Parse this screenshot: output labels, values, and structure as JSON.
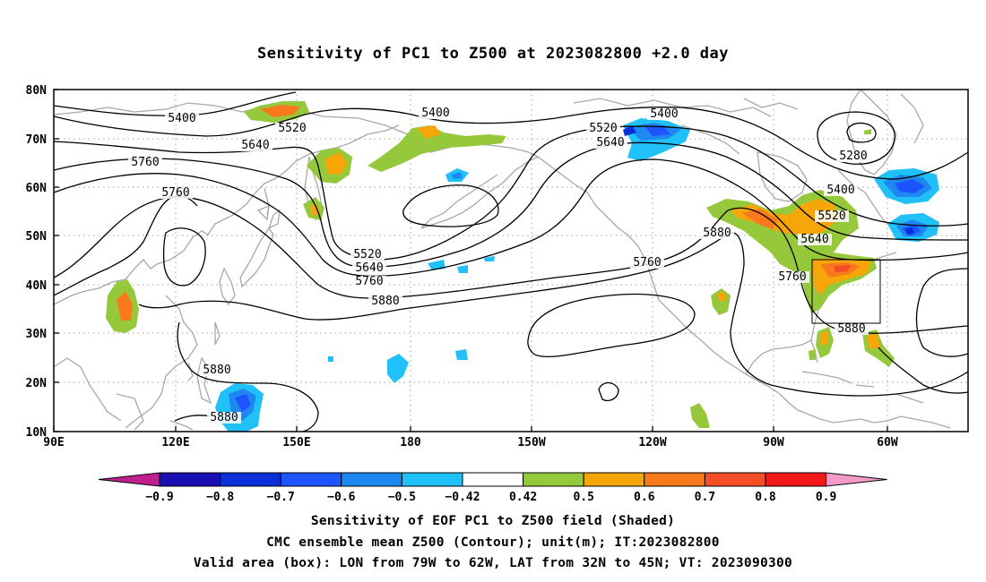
{
  "title": "Sensitivity of PC1 to Z500 at 2023082800 +2.0 day",
  "lat_ticks": [
    "80N",
    "70N",
    "60N",
    "50N",
    "40N",
    "30N",
    "20N",
    "10N"
  ],
  "lon_ticks": [
    "90E",
    "120E",
    "150E",
    "180",
    "150W",
    "120W",
    "90W",
    "60W"
  ],
  "contour_labels": [
    {
      "text": "5400"
    },
    {
      "text": "5520"
    },
    {
      "text": "5640"
    },
    {
      "text": "5760"
    },
    {
      "text": "5760"
    },
    {
      "text": "5400"
    },
    {
      "text": "5520"
    },
    {
      "text": "5400"
    },
    {
      "text": "5640"
    },
    {
      "text": "5280"
    },
    {
      "text": "5400"
    },
    {
      "text": "5520"
    },
    {
      "text": "5640"
    },
    {
      "text": "5880"
    },
    {
      "text": "5760"
    },
    {
      "text": "5520"
    },
    {
      "text": "5640"
    },
    {
      "text": "5760"
    },
    {
      "text": "5880"
    },
    {
      "text": "5760"
    },
    {
      "text": "5880"
    },
    {
      "text": "5880"
    },
    {
      "text": "5880"
    }
  ],
  "colorbar": {
    "labels": [
      "-0.9",
      "-0.8",
      "-0.7",
      "-0.6",
      "-0.5",
      "-0.42",
      "0.42",
      "0.5",
      "0.6",
      "0.7",
      "0.8",
      "0.9"
    ],
    "colors": [
      "#c0208f",
      "#1a0fb0",
      "#0a2fd8",
      "#1c55ff",
      "#1e88f0",
      "#20c0f8",
      "#ffffff",
      "#96c83c",
      "#f7a60a",
      "#f87a1c",
      "#f44e26",
      "#f01818",
      "#f49ac8"
    ]
  },
  "captions": {
    "line1": "Sensitivity of EOF PC1 to Z500 field (Shaded)",
    "line2": "CMC ensemble mean Z500 (Contour); unit(m); IT:2023082800",
    "line3": "Valid area (box): LON from 79W to 62W, LAT from 32N to 45N; VT: 2023090300"
  }
}
